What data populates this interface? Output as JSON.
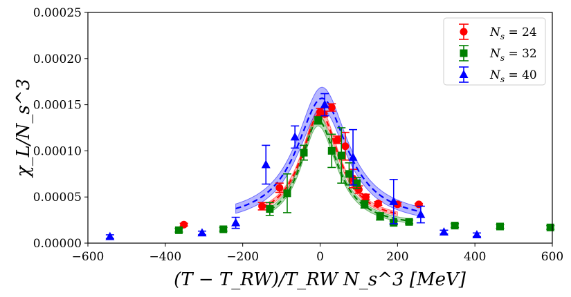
{
  "chart_data": {
    "type": "scatter",
    "title": "",
    "xlabel": "(T − T_RW)/T_RW N_s^3 [MeV]",
    "ylabel": "χ_L/N_s^3",
    "xlim": [
      -600,
      600
    ],
    "ylim": [
      0,
      0.00025
    ],
    "x_ticks": [
      -600,
      -400,
      -200,
      0,
      200,
      400,
      600
    ],
    "x_tick_labels": [
      "−600",
      "−400",
      "−200",
      "0",
      "200",
      "400",
      "600"
    ],
    "y_ticks": [
      0,
      5e-05,
      0.0001,
      0.00015,
      0.0002,
      0.00025
    ],
    "y_tick_labels": [
      "0.00000",
      "0.00005",
      "0.00010",
      "0.00015",
      "0.00020",
      "0.00025"
    ],
    "legend_position": "top-right",
    "series": [
      {
        "name": "N_s = 24",
        "label_main": "N",
        "label_sub": "s",
        "label_rest": " = 24",
        "color": "#ff0000",
        "marker": "circle",
        "points": [
          {
            "x": -352,
            "y": 2e-05,
            "err": 1.5e-06
          },
          {
            "x": -150,
            "y": 4e-05,
            "err": 4e-06
          },
          {
            "x": -105,
            "y": 6e-05,
            "err": 5e-06
          },
          {
            "x": 0,
            "y": 0.000142,
            "err": 4e-06
          },
          {
            "x": 10,
            "y": 0.00014,
            "err": 3e-06
          },
          {
            "x": 30,
            "y": 0.000147,
            "err": 4e-06
          },
          {
            "x": 45,
            "y": 0.000112,
            "err": 4e-06
          },
          {
            "x": 65,
            "y": 0.000105,
            "err": 1.5e-05
          },
          {
            "x": 85,
            "y": 7e-05,
            "err": 1e-05
          },
          {
            "x": 100,
            "y": 5.8e-05,
            "err": 4e-06
          },
          {
            "x": 118,
            "y": 5e-05,
            "err": 3e-06
          },
          {
            "x": 150,
            "y": 4.3e-05,
            "err": 2e-06
          },
          {
            "x": 200,
            "y": 4.2e-05,
            "err": 2e-06
          },
          {
            "x": 255,
            "y": 4.2e-05,
            "err": 1e-06
          }
        ],
        "fit": {
          "peak_x": 0,
          "peak_y": 0.000141,
          "sigma_left": 60,
          "sigma_right": 60,
          "base_y": 2.2e-05,
          "x_range": [
            -150,
            200
          ],
          "band": 5e-06
        }
      },
      {
        "name": "N_s = 32",
        "label_main": "N",
        "label_sub": "s",
        "label_rest": " = 32",
        "color": "#008000",
        "marker": "square",
        "points": [
          {
            "x": -365,
            "y": 1.4e-05,
            "err": 2e-06
          },
          {
            "x": -250,
            "y": 1.5e-05,
            "err": 2e-06
          },
          {
            "x": -130,
            "y": 3.7e-05,
            "err": 7e-06
          },
          {
            "x": -85,
            "y": 5.4e-05,
            "err": 2.1e-05
          },
          {
            "x": -42,
            "y": 9.8e-05,
            "err": 8e-06
          },
          {
            "x": -5,
            "y": 0.000133,
            "err": 4e-06
          },
          {
            "x": 30,
            "y": 0.0001,
            "err": 1.8e-05
          },
          {
            "x": 55,
            "y": 9.5e-05,
            "err": 3e-05
          },
          {
            "x": 75,
            "y": 7.5e-05,
            "err": 1.2e-05
          },
          {
            "x": 95,
            "y": 6.5e-05,
            "err": 6e-06
          },
          {
            "x": 115,
            "y": 4.2e-05,
            "err": 4e-06
          },
          {
            "x": 155,
            "y": 2.9e-05,
            "err": 4e-06
          },
          {
            "x": 190,
            "y": 2.2e-05,
            "err": 2e-06
          },
          {
            "x": 230,
            "y": 2.3e-05,
            "err": 2e-06
          },
          {
            "x": 348,
            "y": 1.9e-05,
            "err": 2e-06
          },
          {
            "x": 465,
            "y": 1.8e-05,
            "err": 2e-06
          },
          {
            "x": 595,
            "y": 1.7e-05,
            "err": 2e-06
          }
        ],
        "fit": {
          "peak_x": -5,
          "peak_y": 0.000133,
          "sigma_left": 55,
          "sigma_right": 60,
          "base_y": 1.7e-05,
          "x_range": [
            -130,
            235
          ],
          "band": 6e-06
        }
      },
      {
        "name": "N_s = 40",
        "label_main": "N",
        "label_sub": "s",
        "label_rest": " = 40",
        "color": "#0000ff",
        "marker": "triangle",
        "points": [
          {
            "x": -543,
            "y": 7e-06,
            "err": 2e-06
          },
          {
            "x": -305,
            "y": 1.1e-05,
            "err": 2e-06
          },
          {
            "x": -218,
            "y": 2.2e-05,
            "err": 6e-06
          },
          {
            "x": -140,
            "y": 8.5e-05,
            "err": 2.1e-05
          },
          {
            "x": -65,
            "y": 0.000115,
            "err": 1.2e-05
          },
          {
            "x": 12,
            "y": 0.00015,
            "err": 1.2e-05
          },
          {
            "x": 85,
            "y": 9.3e-05,
            "err": 3e-05
          },
          {
            "x": 190,
            "y": 4.5e-05,
            "err": 2.4e-05
          },
          {
            "x": 260,
            "y": 3.1e-05,
            "err": 9e-06
          },
          {
            "x": 320,
            "y": 1.2e-05,
            "err": 2e-06
          },
          {
            "x": 405,
            "y": 9e-06,
            "err": 2e-06
          }
        ],
        "fit": {
          "peak_x": 5,
          "peak_y": 0.000157,
          "sigma_left": 80,
          "sigma_right": 80,
          "base_y": 2.2e-05,
          "x_range": [
            -218,
            260
          ],
          "band": 1.2e-05
        }
      }
    ]
  }
}
